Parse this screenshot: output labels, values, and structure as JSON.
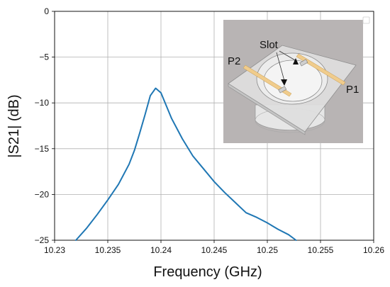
{
  "chart_data": {
    "type": "line",
    "title": "",
    "xlabel": "Frequency (GHz)",
    "ylabel": "|S21| (dB)",
    "xlim": [
      10.23,
      10.26
    ],
    "ylim": [
      -25,
      0
    ],
    "xticks": [
      10.23,
      10.235,
      10.24,
      10.245,
      10.25,
      10.255,
      10.26
    ],
    "xtick_labels": [
      "10.23",
      "10.235",
      "10.24",
      "10.245",
      "10.25",
      "10.255",
      "10.26"
    ],
    "yticks": [
      0,
      -5,
      -10,
      -15,
      -20,
      -25
    ],
    "ytick_labels": [
      "0",
      "−5",
      "−10",
      "−15",
      "−20",
      "−25"
    ],
    "grid": true,
    "series": [
      {
        "color": "#1f77b4",
        "x": [
          10.232,
          10.233,
          10.234,
          10.235,
          10.236,
          10.237,
          10.2375,
          10.238,
          10.2385,
          10.239,
          10.2395,
          10.24,
          10.2405,
          10.241,
          10.2415,
          10.242,
          10.243,
          10.244,
          10.245,
          10.246,
          10.247,
          10.248,
          10.249,
          10.25,
          10.251,
          10.252,
          10.2527
        ],
        "y": [
          -25.0,
          -23.7,
          -22.2,
          -20.6,
          -18.9,
          -16.7,
          -15.2,
          -13.3,
          -11.3,
          -9.2,
          -8.4,
          -8.9,
          -10.3,
          -11.7,
          -12.8,
          -13.9,
          -15.8,
          -17.2,
          -18.6,
          -19.8,
          -20.9,
          -22.0,
          -22.5,
          -23.1,
          -23.8,
          -24.4,
          -25.0
        ]
      }
    ],
    "inset": {
      "description_labels": [
        "Slot",
        "P2",
        "P1"
      ]
    }
  }
}
